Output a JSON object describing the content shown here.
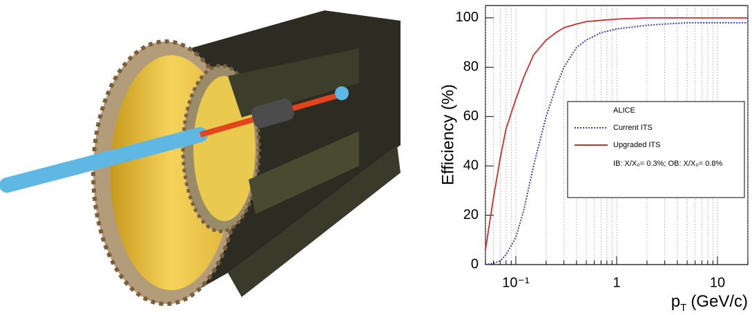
{
  "chart_data": {
    "type": "line",
    "y_label": "Efficiency (%)",
    "x_label": {
      "text": "p",
      "subscript": "T",
      "unit": "(GeV/c)"
    },
    "log_x": true,
    "xlim": [
      0.05,
      20
    ],
    "ylim": [
      0,
      105
    ],
    "xticks": [
      {
        "value": 0.1,
        "label": "10⁻¹"
      },
      1,
      10
    ],
    "xminorticks": [
      0.05,
      0.06,
      0.07,
      0.08,
      0.09,
      0.2,
      0.3,
      0.4,
      0.5,
      0.6,
      0.7,
      0.8,
      0.9,
      2,
      3,
      4,
      5,
      6,
      7,
      8,
      9,
      20
    ],
    "yticks": [
      0,
      20,
      40,
      60,
      80,
      100
    ],
    "grid": true,
    "legend": {
      "title": "ALICE",
      "note": "IB: X/X₀= 0.3%; OB: X/X₀= 0.8%",
      "position": "right"
    },
    "x": [
      0.05,
      0.06,
      0.07,
      0.08,
      0.1,
      0.12,
      0.15,
      0.2,
      0.25,
      0.3,
      0.4,
      0.5,
      0.7,
      1,
      2,
      3,
      5,
      10,
      20
    ],
    "series": [
      {
        "name": "Current ITS",
        "color": "#3b3bb0",
        "style": "dotted",
        "values": [
          0,
          0.5,
          1.5,
          4,
          11,
          22,
          40,
          60,
          72,
          80,
          88,
          91,
          94,
          95.5,
          97,
          97.5,
          98,
          98,
          98
        ]
      },
      {
        "name": "Upgraded ITS",
        "color": "#d42a2a",
        "style": "solid",
        "values": [
          6,
          27,
          43,
          55,
          67,
          76,
          85,
          91,
          94,
          96,
          97.5,
          98.5,
          99,
          99.5,
          100,
          100,
          100,
          100,
          100
        ]
      }
    ]
  }
}
